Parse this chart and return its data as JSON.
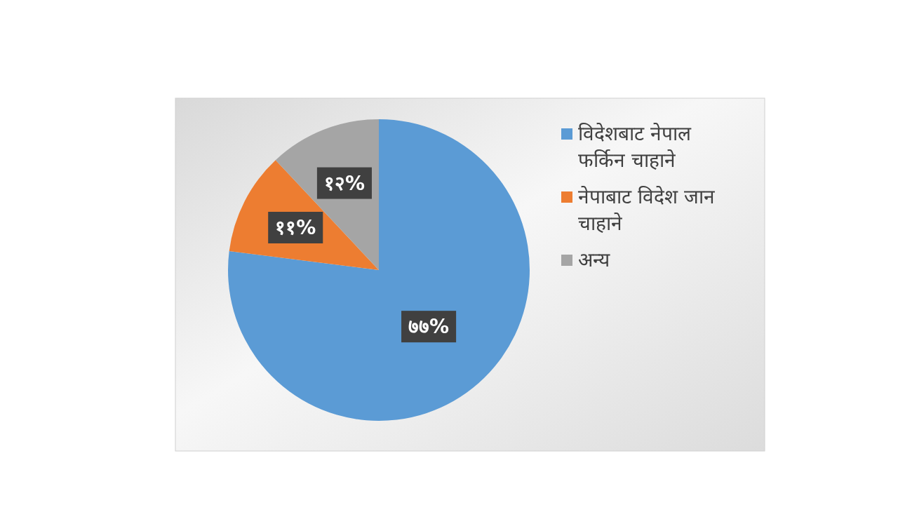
{
  "chart_data": {
    "type": "pie",
    "categories": [
      "विदेशबाट नेपाल फर्किन चाहाने",
      "नेपाबाट विदेश जान चाहाने",
      "अन्य"
    ],
    "values": [
      77,
      11,
      12
    ],
    "colors": [
      "#5b9bd5",
      "#ed7d31",
      "#a5a5a5"
    ],
    "value_labels": [
      "७७%",
      "११%",
      "१२%"
    ],
    "legend": "right"
  }
}
